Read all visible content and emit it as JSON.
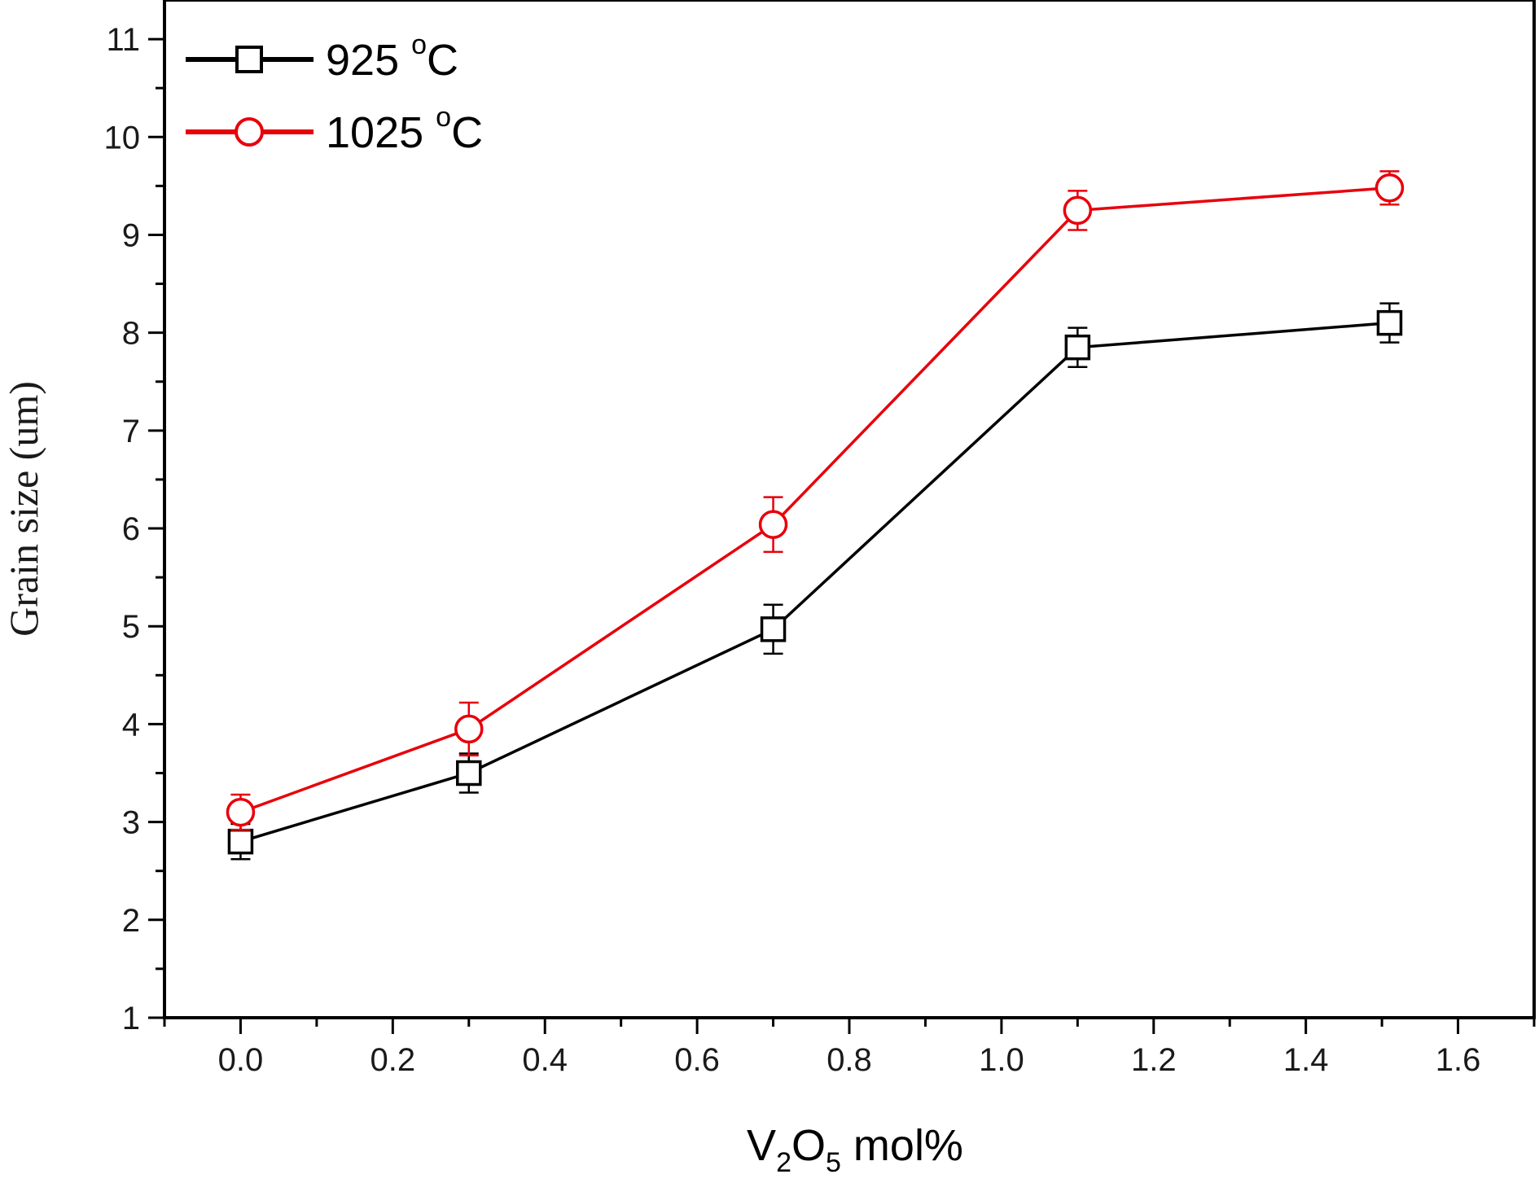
{
  "chart_data": {
    "type": "line",
    "title": "",
    "xlabel": {
      "main": "V",
      "sub1": "2",
      "mid": "O",
      "sub2": "5",
      "tail": " mol%"
    },
    "ylabel": "Grain size (um)",
    "xlim": [
      -0.1,
      1.7
    ],
    "ylim": [
      1,
      11.4
    ],
    "xticks": [
      0.0,
      0.2,
      0.4,
      0.6,
      0.8,
      1.0,
      1.2,
      1.4,
      1.6
    ],
    "xtick_labels": [
      "0.0",
      "0.2",
      "0.4",
      "0.6",
      "0.8",
      "1.0",
      "1.2",
      "1.4",
      "1.6"
    ],
    "yticks": [
      1,
      2,
      3,
      4,
      5,
      6,
      7,
      8,
      9,
      10,
      11
    ],
    "ytick_labels": [
      "1",
      "2",
      "3",
      "4",
      "5",
      "6",
      "7",
      "8",
      "9",
      "10",
      "11"
    ],
    "legend_position": "top-left",
    "series": [
      {
        "name": "925 °C",
        "label_main": "925 ",
        "label_sup": "o",
        "label_tail": "C",
        "color": "#000000",
        "marker": "square",
        "x": [
          0.0,
          0.3,
          0.7,
          1.1,
          1.51
        ],
        "y": [
          2.8,
          3.5,
          4.97,
          7.85,
          8.1
        ],
        "err": [
          0.18,
          0.2,
          0.25,
          0.2,
          0.2
        ]
      },
      {
        "name": "1025 °C",
        "label_main": "1025 ",
        "label_sup": "o",
        "label_tail": "C",
        "color": "#e8000b",
        "marker": "circle",
        "x": [
          0.0,
          0.3,
          0.7,
          1.1,
          1.51
        ],
        "y": [
          3.1,
          3.95,
          6.04,
          9.25,
          9.48
        ],
        "err": [
          0.18,
          0.27,
          0.28,
          0.2,
          0.17
        ]
      }
    ]
  }
}
